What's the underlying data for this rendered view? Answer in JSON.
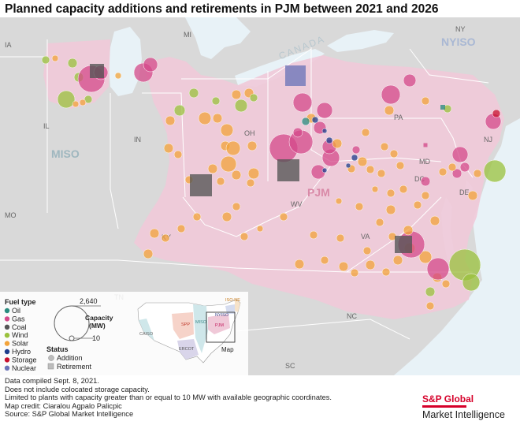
{
  "title": "Planned capacity additions and retirements in PJM between 2021 and 2026",
  "map": {
    "state_labels": [
      "IA",
      "MI",
      "IL",
      "IN",
      "OH",
      "PA",
      "NJ",
      "MO",
      "KY",
      "WV",
      "MD",
      "DE",
      "DC",
      "VA",
      "TN",
      "NC",
      "SC",
      "NY"
    ],
    "region_labels": [
      "MISO",
      "PJM",
      "NYISO"
    ],
    "country_label": "CANADA"
  },
  "legend": {
    "fuel_title": "Fuel type",
    "fuels": [
      {
        "name": "Oil",
        "color": "#2a8c7f"
      },
      {
        "name": "Gas",
        "color": "#d44a8a"
      },
      {
        "name": "Coal",
        "color": "#555555"
      },
      {
        "name": "Wind",
        "color": "#9ac13c"
      },
      {
        "name": "Solar",
        "color": "#f2a33a"
      },
      {
        "name": "Hydro",
        "color": "#1f3d8c"
      },
      {
        "name": "Storage",
        "color": "#c8102e"
      },
      {
        "name": "Nuclear",
        "color": "#6b74b8"
      }
    ],
    "capacity_title": "Capacity (MW)",
    "capacity_max": "2,640",
    "capacity_min": "10",
    "status_title": "Status",
    "statuses": [
      "Addition",
      "Retirement"
    ],
    "inset_label": "Map",
    "inset_regions": [
      "CAISO",
      "SPP",
      "ERCOT",
      "MISO",
      "PJM",
      "NYISO",
      "ISO-NE"
    ]
  },
  "notes": [
    "Data compiled Sept. 8, 2021.",
    "Does not include colocated storage capacity.",
    "Limited to plants with capacity greater than or equal to 10 MW with available geographic coordinates.",
    "Map credit: Ciaralou Agpalo Palicpic",
    "Source: S&P Global Market Intelligence"
  ],
  "brand": {
    "line1": "S&P Global",
    "line2": "Market Intelligence"
  },
  "colors": {
    "land": "#d9d9d9",
    "water": "#e8f2f7",
    "pjm": "#f0c9d8",
    "border": "#ffffff"
  }
}
